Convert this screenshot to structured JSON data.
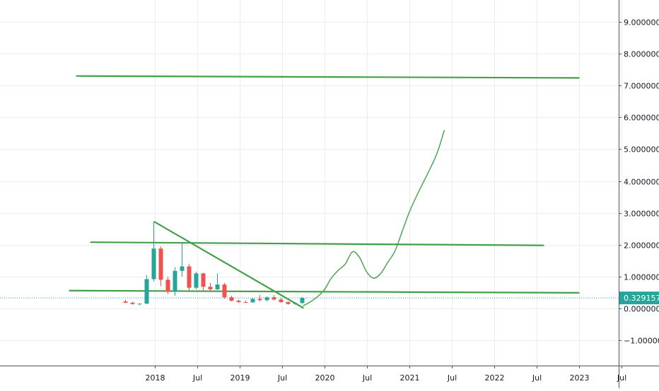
{
  "chart_data": {
    "type": "candlestick",
    "y_axis": {
      "min": -1.8,
      "max": 9.7,
      "ticks": [
        -1,
        0,
        1,
        2,
        3,
        4,
        5,
        6,
        7,
        8,
        9
      ],
      "tick_labels": [
        "−1.000000",
        "0.000000",
        "1.000000",
        "2.000000",
        "3.000000",
        "4.000000",
        "5.000000",
        "6.000000",
        "7.000000",
        "8.000000",
        "9.000000"
      ],
      "position": "right"
    },
    "x_axis": {
      "start": "2017-01",
      "end": "2023-06",
      "ticks": [
        {
          "date": "2018-01",
          "label": "2018"
        },
        {
          "date": "2018-07",
          "label": "Jul"
        },
        {
          "date": "2019-01",
          "label": "2019"
        },
        {
          "date": "2019-07",
          "label": "Jul"
        },
        {
          "date": "2020-01",
          "label": "2020"
        },
        {
          "date": "2020-07",
          "label": "Jul"
        },
        {
          "date": "2021-01",
          "label": "2021"
        },
        {
          "date": "2021-07",
          "label": "Jul"
        },
        {
          "date": "2022-01",
          "label": "2022"
        },
        {
          "date": "2022-07",
          "label": "Jul"
        },
        {
          "date": "2023-01",
          "label": "2023"
        },
        {
          "date": "2023-07",
          "label": "Jul"
        }
      ]
    },
    "grid": true,
    "colors": {
      "up": "#26a69a",
      "down": "#ef5350",
      "drawing": "#43a047",
      "price_line": "#26a69a"
    },
    "last_price": {
      "value": 0.329157,
      "label": "0.329157"
    },
    "candles": [
      {
        "date": "2017-09",
        "open": 0.22,
        "high": 0.27,
        "low": 0.17,
        "close": 0.18
      },
      {
        "date": "2017-10",
        "open": 0.18,
        "high": 0.21,
        "low": 0.12,
        "close": 0.14
      },
      {
        "date": "2017-11",
        "open": 0.14,
        "high": 0.16,
        "low": 0.1,
        "close": 0.15
      },
      {
        "date": "2017-12",
        "open": 0.15,
        "high": 1.05,
        "low": 0.13,
        "close": 0.92
      },
      {
        "date": "2018-01",
        "open": 0.92,
        "high": 2.72,
        "low": 0.85,
        "close": 1.88
      },
      {
        "date": "2018-02",
        "open": 1.88,
        "high": 1.95,
        "low": 0.7,
        "close": 0.9
      },
      {
        "date": "2018-03",
        "open": 0.9,
        "high": 1.0,
        "low": 0.45,
        "close": 0.52
      },
      {
        "date": "2018-04",
        "open": 0.52,
        "high": 1.3,
        "low": 0.4,
        "close": 1.18
      },
      {
        "date": "2018-05",
        "open": 1.18,
        "high": 2.05,
        "low": 1.0,
        "close": 1.32
      },
      {
        "date": "2018-06",
        "open": 1.32,
        "high": 1.4,
        "low": 0.55,
        "close": 0.65
      },
      {
        "date": "2018-07",
        "open": 0.65,
        "high": 1.15,
        "low": 0.6,
        "close": 1.1
      },
      {
        "date": "2018-08",
        "open": 1.1,
        "high": 1.12,
        "low": 0.55,
        "close": 0.68
      },
      {
        "date": "2018-09",
        "open": 0.68,
        "high": 0.8,
        "low": 0.52,
        "close": 0.6
      },
      {
        "date": "2018-10",
        "open": 0.6,
        "high": 1.1,
        "low": 0.58,
        "close": 0.75
      },
      {
        "date": "2018-11",
        "open": 0.75,
        "high": 0.8,
        "low": 0.3,
        "close": 0.35
      },
      {
        "date": "2018-12",
        "open": 0.35,
        "high": 0.4,
        "low": 0.22,
        "close": 0.24
      },
      {
        "date": "2019-01",
        "open": 0.24,
        "high": 0.28,
        "low": 0.18,
        "close": 0.2
      },
      {
        "date": "2019-02",
        "open": 0.2,
        "high": 0.24,
        "low": 0.17,
        "close": 0.19
      },
      {
        "date": "2019-03",
        "open": 0.19,
        "high": 0.34,
        "low": 0.18,
        "close": 0.3
      },
      {
        "date": "2019-04",
        "open": 0.3,
        "high": 0.42,
        "low": 0.22,
        "close": 0.26
      },
      {
        "date": "2019-05",
        "open": 0.26,
        "high": 0.38,
        "low": 0.22,
        "close": 0.35
      },
      {
        "date": "2019-06",
        "open": 0.35,
        "high": 0.42,
        "low": 0.25,
        "close": 0.28
      },
      {
        "date": "2019-07",
        "open": 0.28,
        "high": 0.32,
        "low": 0.18,
        "close": 0.2
      },
      {
        "date": "2019-08",
        "open": 0.2,
        "high": 0.22,
        "low": 0.12,
        "close": 0.14
      },
      {
        "date": "2019-09",
        "open": 0.14,
        "high": 0.2,
        "low": 0.12,
        "close": 0.17
      },
      {
        "date": "2019-10",
        "open": 0.17,
        "high": 0.36,
        "low": 0.15,
        "close": 0.33
      }
    ],
    "drawings": [
      {
        "kind": "line",
        "points": [
          {
            "date": "2017-02",
            "value": 7.3
          },
          {
            "date": "2023-01",
            "value": 7.24
          }
        ]
      },
      {
        "kind": "line",
        "points": [
          {
            "date": "2017-04",
            "value": 2.08
          },
          {
            "date": "2022-08",
            "value": 1.98
          }
        ]
      },
      {
        "kind": "line",
        "points": [
          {
            "date": "2017-01",
            "value": 0.56
          },
          {
            "date": "2023-01",
            "value": 0.49
          }
        ]
      },
      {
        "kind": "line",
        "points": [
          {
            "date": "2018-01",
            "value": 2.72
          },
          {
            "date": "2019-10",
            "value": 0.02
          }
        ]
      },
      {
        "kind": "path",
        "points": [
          {
            "date": "2019-10",
            "value": 0.08
          },
          {
            "date": "2019-11",
            "value": 0.2
          },
          {
            "date": "2019-12",
            "value": 0.36
          },
          {
            "date": "2020-01",
            "value": 0.58
          },
          {
            "date": "2020-02",
            "value": 0.95
          },
          {
            "date": "2020-03",
            "value": 1.2
          },
          {
            "date": "2020-04",
            "value": 1.4
          },
          {
            "date": "2020-05",
            "value": 1.78
          },
          {
            "date": "2020-06",
            "value": 1.6
          },
          {
            "date": "2020-07",
            "value": 1.15
          },
          {
            "date": "2020-08",
            "value": 0.95
          },
          {
            "date": "2020-09",
            "value": 1.1
          },
          {
            "date": "2020-10",
            "value": 1.45
          },
          {
            "date": "2020-11",
            "value": 1.8
          },
          {
            "date": "2020-12",
            "value": 2.4
          },
          {
            "date": "2021-01",
            "value": 3.0
          },
          {
            "date": "2021-02",
            "value": 3.5
          },
          {
            "date": "2021-03",
            "value": 3.95
          },
          {
            "date": "2021-04",
            "value": 4.4
          },
          {
            "date": "2021-05",
            "value": 4.9
          },
          {
            "date": "2021-06",
            "value": 5.6
          }
        ]
      }
    ]
  }
}
